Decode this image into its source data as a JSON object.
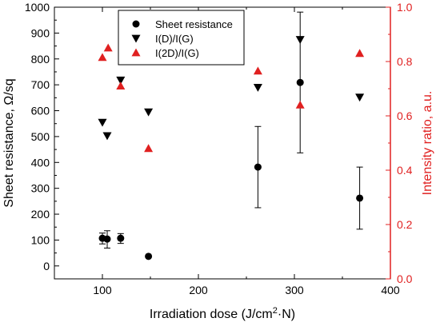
{
  "chart_data": {
    "type": "scatter",
    "x_axis": {
      "label_main": "Irradiation dose (J/cm",
      "label_sup": "2",
      "label_tail": "·N)",
      "range": [
        50,
        400
      ],
      "ticks": [
        "100",
        "200",
        "300",
        "400"
      ],
      "tick_values": [
        100,
        200,
        300,
        400
      ]
    },
    "y_left": {
      "label": "Sheet resistance, Ω/sq",
      "range": [
        -50,
        1000
      ],
      "ticks": [
        "0",
        "100",
        "200",
        "300",
        "400",
        "500",
        "600",
        "700",
        "800",
        "900",
        "1000"
      ],
      "tick_values": [
        0,
        100,
        200,
        300,
        400,
        500,
        600,
        700,
        800,
        900,
        1000
      ]
    },
    "y_right": {
      "label": "Intensity ratio, a.u.",
      "range": [
        0.0,
        1.0
      ],
      "ticks": [
        "0.0",
        "0.2",
        "0.4",
        "0.6",
        "0.8",
        "1.0"
      ],
      "tick_values": [
        0.0,
        0.2,
        0.4,
        0.6,
        0.8,
        1.0
      ]
    },
    "legend": {
      "placement": "top-center",
      "entries": [
        "Sheet resistance",
        "I(D)/I(G)",
        "I(2D)/I(G)"
      ]
    },
    "series": [
      {
        "name": "Sheet resistance",
        "marker": "circle",
        "color": "#000000",
        "axis": "left",
        "x": [
          100,
          105,
          119,
          148,
          262,
          306,
          368
        ],
        "y": [
          107,
          104,
          107,
          37,
          382,
          709,
          262
        ],
        "err_low": [
          22,
          35,
          20,
          0,
          157,
          272,
          120
        ],
        "err_high": [
          20,
          32,
          18,
          0,
          157,
          272,
          120
        ]
      },
      {
        "name": "I(D)/I(G)",
        "marker": "triangle-down",
        "color": "#000000",
        "axis": "left",
        "x": [
          100,
          105,
          119,
          148,
          262,
          306,
          368
        ],
        "y": [
          555,
          503,
          718,
          595,
          690,
          875,
          652
        ]
      },
      {
        "name": "I(2D)/I(G)",
        "marker": "triangle-up",
        "color": "#e02020",
        "axis": "right",
        "x": [
          100,
          106,
          119,
          148,
          262,
          306,
          368
        ],
        "y": [
          0.815,
          0.85,
          0.71,
          0.48,
          0.765,
          0.64,
          0.83
        ]
      }
    ]
  }
}
